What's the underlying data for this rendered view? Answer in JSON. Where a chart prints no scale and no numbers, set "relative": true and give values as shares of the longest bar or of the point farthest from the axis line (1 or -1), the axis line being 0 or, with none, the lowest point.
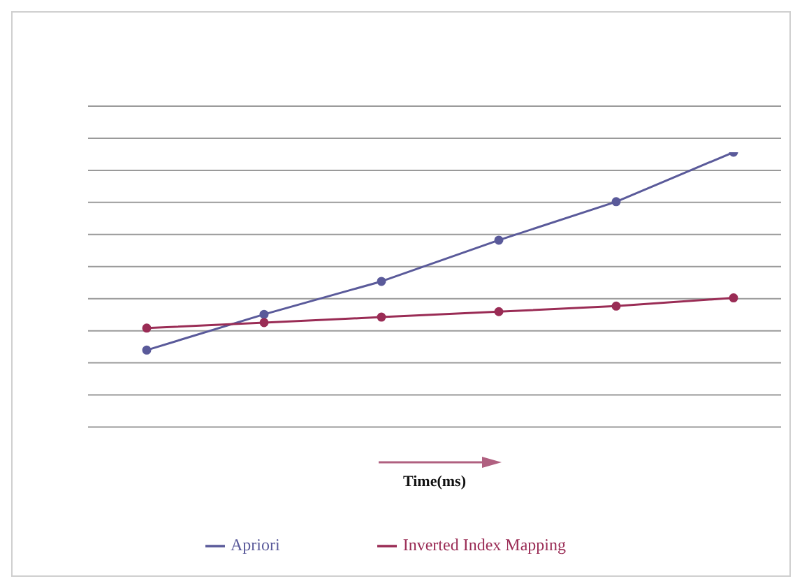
{
  "chart_data": {
    "type": "line",
    "relative": true,
    "xlabel": "Time(ms)",
    "categories": [
      null,
      null,
      null,
      null,
      null,
      null
    ],
    "series": [
      {
        "name": "Apriori",
        "color": "#5a5a9a",
        "values": [
          0.28,
          0.41,
          0.53,
          0.68,
          0.82,
          1
        ]
      },
      {
        "name": "Inverted Index Mapping",
        "color": "#9a2c55",
        "values": [
          0.36,
          0.38,
          0.4,
          0.42,
          0.44,
          0.47
        ]
      }
    ],
    "grid": "y",
    "legend": "bottom",
    "marker": "circle",
    "line_style": "solid"
  }
}
